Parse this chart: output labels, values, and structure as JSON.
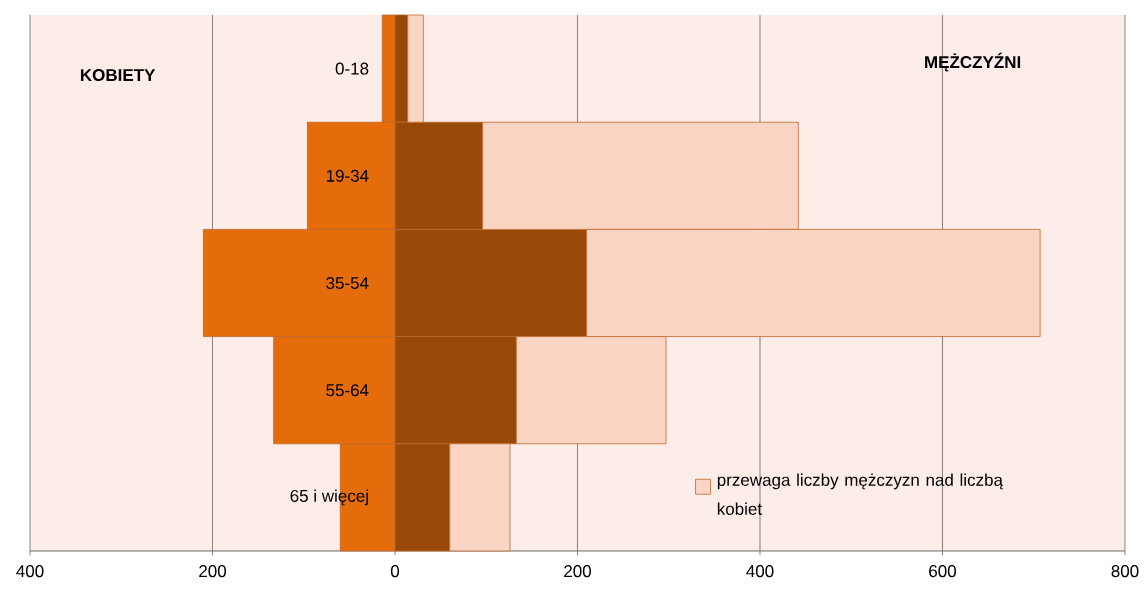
{
  "chart_data": {
    "type": "bar",
    "orientation": "horizontal",
    "stacked": true,
    "categories": [
      "0-18",
      "19-34",
      "35-54",
      "55-64",
      "65 i więcej"
    ],
    "series": [
      {
        "color": "#e46c0a",
        "values": [
          -14,
          -96,
          -210,
          -133,
          -60
        ]
      },
      {
        "color": "#984807",
        "values": [
          14,
          96,
          210,
          133,
          60
        ]
      },
      {
        "name": "przewaga liczby mężczyzn nad liczbą kobiet",
        "color": "#fad5c3",
        "values": [
          17,
          346,
          497,
          164,
          66
        ]
      }
    ],
    "xlim": [
      -400,
      800
    ],
    "xticks": [
      {
        "value": -400,
        "label": "400"
      },
      {
        "value": -200,
        "label": "200"
      },
      0,
      200,
      400,
      600,
      800
    ],
    "grid": "x",
    "legend": "bottom right",
    "annotations": [
      "KOBIETY",
      "MĘŻCZYŹNI"
    ]
  }
}
